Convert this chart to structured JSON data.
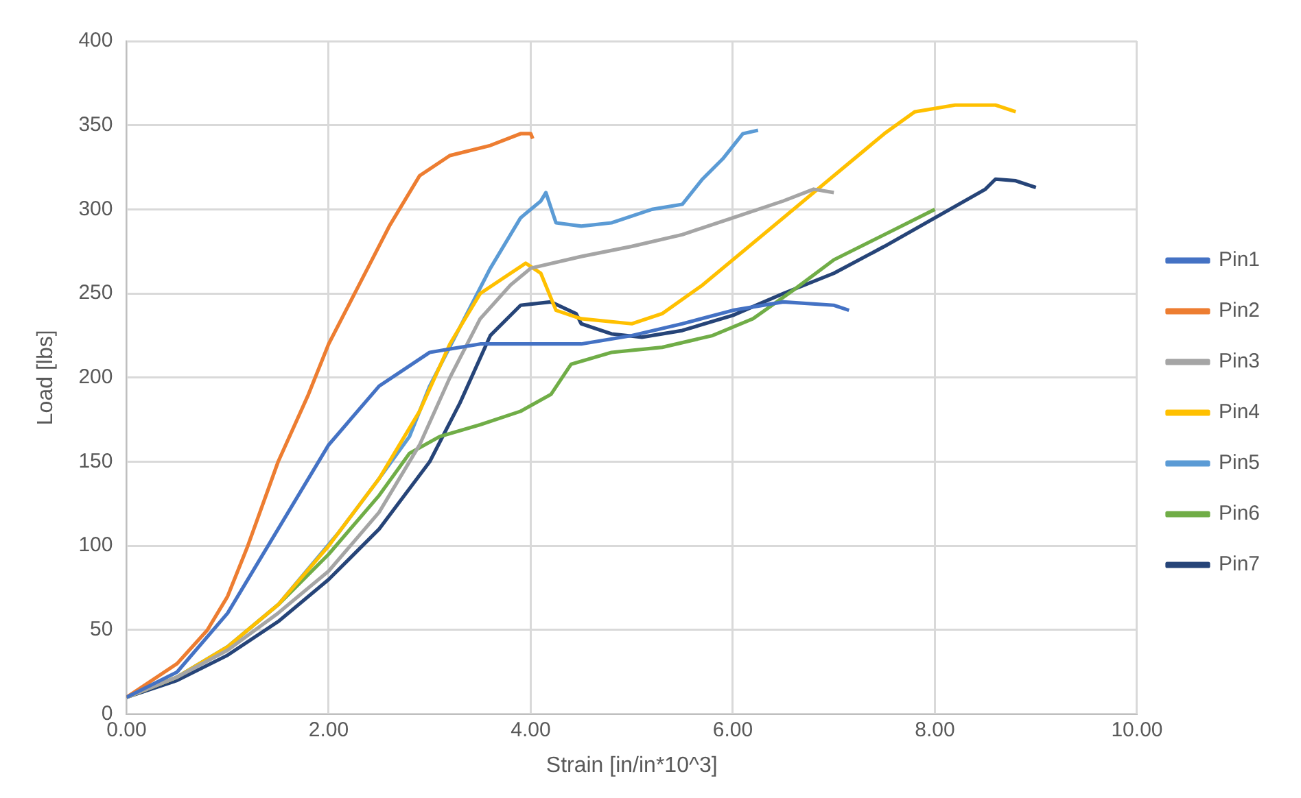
{
  "chart_data": {
    "type": "line",
    "xlabel": "Strain [in/in*10^3]",
    "ylabel": "Load [lbs]",
    "xlim": [
      0,
      10
    ],
    "xticks": [
      {
        "value": 0,
        "label": "0.00"
      },
      {
        "value": 2,
        "label": "2.00"
      },
      {
        "value": 4,
        "label": "4.00"
      },
      {
        "value": 6,
        "label": "6.00"
      },
      {
        "value": 8,
        "label": "8.00"
      },
      {
        "value": 10,
        "label": "10.00"
      }
    ],
    "ylim": [
      0,
      400
    ],
    "yticks": [
      0,
      50,
      100,
      150,
      200,
      250,
      300,
      350,
      400
    ],
    "grid": true,
    "legend": "right",
    "marker": "none",
    "line_style": "solid",
    "series": [
      {
        "name": "Pin1",
        "color": "#4472c4",
        "x": [
          0,
          0.5,
          1,
          1.5,
          2,
          2.5,
          3,
          3.5,
          4,
          4.5,
          5,
          5.5,
          6,
          6.5,
          7,
          7.15
        ],
        "values": [
          10,
          25,
          60,
          110,
          160,
          195,
          215,
          220,
          220,
          220,
          225,
          232,
          240,
          245,
          243,
          240
        ]
      },
      {
        "name": "Pin2",
        "color": "#ed7d31",
        "x": [
          0,
          0.5,
          0.8,
          1,
          1.2,
          1.5,
          1.8,
          2,
          2.3,
          2.6,
          2.9,
          3.2,
          3.6,
          3.9,
          4,
          4.02
        ],
        "values": [
          10,
          30,
          50,
          70,
          100,
          150,
          190,
          220,
          255,
          290,
          320,
          332,
          338,
          345,
          345,
          342
        ]
      },
      {
        "name": "Pin3",
        "color": "#a5a5a5",
        "x": [
          0,
          0.5,
          1,
          1.5,
          2,
          2.5,
          2.9,
          3.2,
          3.5,
          3.8,
          4,
          4.5,
          5,
          5.5,
          6,
          6.5,
          6.8,
          7
        ],
        "values": [
          10,
          22,
          38,
          60,
          85,
          120,
          160,
          200,
          235,
          255,
          265,
          272,
          278,
          285,
          295,
          305,
          312,
          310
        ]
      },
      {
        "name": "Pin4",
        "color": "#ffc000",
        "x": [
          0,
          0.5,
          1,
          1.5,
          2,
          2.5,
          2.9,
          3.2,
          3.5,
          3.8,
          3.95,
          4.1,
          4.25,
          4.5,
          5,
          5.3,
          5.7,
          6,
          6.5,
          7,
          7.5,
          7.8,
          8.2,
          8.6,
          8.8
        ],
        "values": [
          10,
          22,
          40,
          65,
          100,
          140,
          180,
          220,
          250,
          262,
          268,
          262,
          240,
          235,
          232,
          238,
          255,
          270,
          295,
          320,
          345,
          358,
          362,
          362,
          358
        ]
      },
      {
        "name": "Pin5",
        "color": "#5b9bd5",
        "x": [
          0,
          0.5,
          1,
          1.5,
          2.1,
          2.5,
          2.8,
          3,
          3.3,
          3.6,
          3.9,
          4.1,
          4.15,
          4.25,
          4.5,
          4.8,
          5.2,
          5.5,
          5.7,
          5.9,
          6.1,
          6.25
        ],
        "values": [
          10,
          22,
          40,
          65,
          108,
          140,
          165,
          195,
          230,
          265,
          295,
          305,
          310,
          292,
          290,
          292,
          300,
          303,
          318,
          330,
          345,
          347
        ]
      },
      {
        "name": "Pin6",
        "color": "#70ad47",
        "x": [
          0,
          0.5,
          1,
          1.5,
          2,
          2.5,
          2.8,
          3.1,
          3.5,
          3.9,
          4.2,
          4.4,
          4.8,
          5.3,
          5.8,
          6.2,
          6.6,
          7,
          7.5,
          8
        ],
        "values": [
          10,
          22,
          40,
          65,
          95,
          130,
          155,
          165,
          172,
          180,
          190,
          208,
          215,
          218,
          225,
          235,
          252,
          270,
          285,
          300
        ]
      },
      {
        "name": "Pin7",
        "color": "#264478",
        "x": [
          0,
          0.5,
          1,
          1.5,
          2,
          2.5,
          3,
          3.3,
          3.6,
          3.9,
          4.2,
          4.45,
          4.5,
          4.8,
          5.1,
          5.5,
          6,
          6.5,
          7,
          7.5,
          8,
          8.5,
          8.6,
          8.8,
          9
        ],
        "values": [
          10,
          20,
          35,
          55,
          80,
          110,
          150,
          185,
          225,
          243,
          245,
          238,
          232,
          226,
          224,
          228,
          237,
          250,
          262,
          278,
          295,
          312,
          318,
          317,
          313
        ]
      }
    ]
  }
}
